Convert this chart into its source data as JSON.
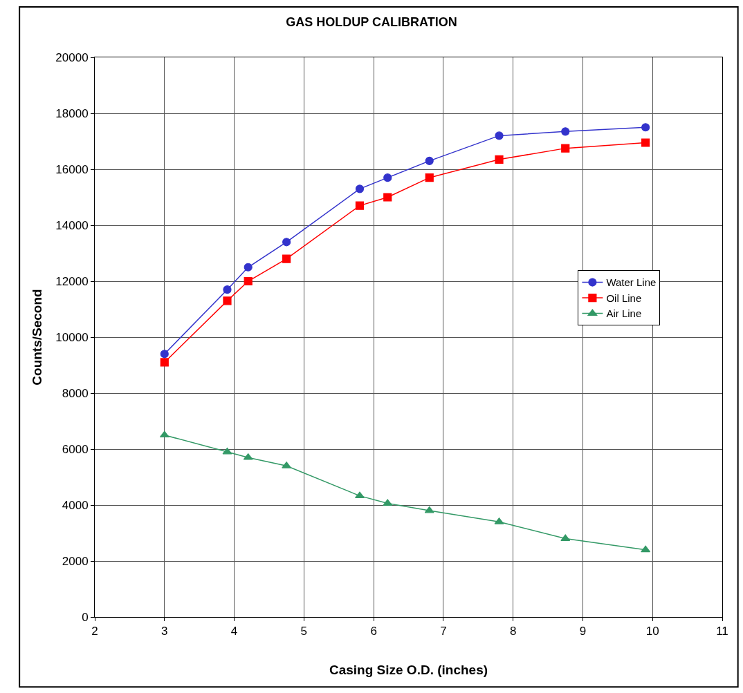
{
  "chart_data": {
    "type": "line",
    "title": "GAS HOLDUP CALIBRATION",
    "xlabel": "Casing Size O.D. (inches)",
    "ylabel": "Counts/Second",
    "x": [
      3.0,
      3.9,
      4.2,
      4.75,
      5.8,
      6.2,
      6.8,
      7.8,
      8.75,
      9.9
    ],
    "series": [
      {
        "name": "Water Line",
        "color": "#3333cc",
        "marker": "circle",
        "values": [
          9400,
          11700,
          12500,
          13400,
          15300,
          15700,
          16300,
          17200,
          17350,
          17500
        ]
      },
      {
        "name": "Oil Line",
        "color": "#ff0000",
        "marker": "square",
        "values": [
          9100,
          11300,
          12000,
          12800,
          14700,
          15000,
          15700,
          16350,
          16750,
          16950
        ]
      },
      {
        "name": "Air Line",
        "color": "#339966",
        "marker": "triangle",
        "values": [
          6500,
          5900,
          5700,
          5400,
          4330,
          4060,
          3800,
          3400,
          2800,
          2400
        ]
      }
    ],
    "xlim": [
      2,
      11
    ],
    "xticks": [
      2,
      3,
      4,
      5,
      6,
      7,
      8,
      9,
      10,
      11
    ],
    "ylim": [
      0,
      20000
    ],
    "yticks": [
      0,
      2000,
      4000,
      6000,
      8000,
      10000,
      12000,
      14000,
      16000,
      18000,
      20000
    ],
    "grid": true,
    "legend": "right",
    "line_style": "solid"
  }
}
